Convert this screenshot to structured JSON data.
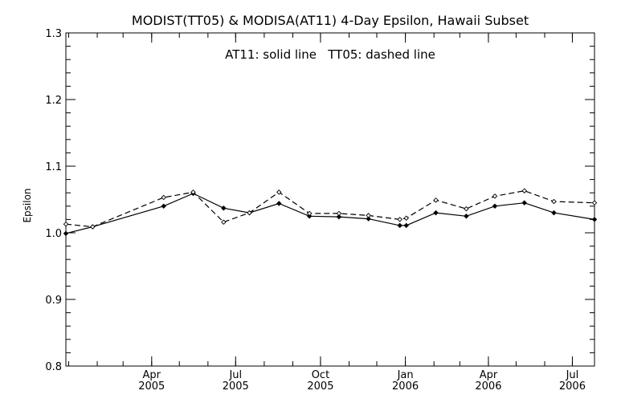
{
  "chart_data": {
    "type": "line",
    "title": "MODIST(TT05) & MODISA(AT11) 4-Day Epsilon, Hawaii Subset",
    "annotation": "AT11: solid line   TT05: dashed line",
    "ylabel": "Epsilon",
    "xlabel": "",
    "ylim": [
      0.8,
      1.3
    ],
    "xlim": [
      "2004-12-29",
      "2006-07-25"
    ],
    "yticks": [
      "0.8",
      "0.9",
      "1.0",
      "1.1",
      "1.2",
      "1.3"
    ],
    "xticks": [
      {
        "date": "2005-04-01",
        "month": "Apr",
        "year": "2005"
      },
      {
        "date": "2005-07-01",
        "month": "Jul",
        "year": "2005"
      },
      {
        "date": "2005-10-01",
        "month": "Oct",
        "year": "2005"
      },
      {
        "date": "2006-01-01",
        "month": "Jan",
        "year": "2006"
      },
      {
        "date": "2006-04-01",
        "month": "Apr",
        "year": "2006"
      },
      {
        "date": "2006-07-01",
        "month": "Jul",
        "year": "2006"
      }
    ],
    "grid": false,
    "series": [
      {
        "name": "AT11",
        "style": "solid",
        "points": [
          [
            "2004-12-29",
            0.999
          ],
          [
            "2005-01-27",
            1.009
          ],
          [
            "2005-04-14",
            1.04
          ],
          [
            "2005-05-16",
            1.059
          ],
          [
            "2005-06-18",
            1.037
          ],
          [
            "2005-07-16",
            1.03
          ],
          [
            "2005-08-17",
            1.044
          ],
          [
            "2005-09-19",
            1.025
          ],
          [
            "2005-10-21",
            1.024
          ],
          [
            "2005-11-22",
            1.021
          ],
          [
            "2005-12-26",
            1.011
          ],
          [
            "2006-01-02",
            1.011
          ],
          [
            "2006-02-03",
            1.03
          ],
          [
            "2006-03-08",
            1.025
          ],
          [
            "2006-04-08",
            1.04
          ],
          [
            "2006-05-10",
            1.045
          ],
          [
            "2006-06-11",
            1.03
          ],
          [
            "2006-07-25",
            1.02
          ]
        ]
      },
      {
        "name": "TT05",
        "style": "dashed",
        "points": [
          [
            "2004-12-29",
            1.013
          ],
          [
            "2005-01-27",
            1.009
          ],
          [
            "2005-04-14",
            1.053
          ],
          [
            "2005-05-16",
            1.061
          ],
          [
            "2005-06-18",
            1.016
          ],
          [
            "2005-07-16",
            1.03
          ],
          [
            "2005-08-17",
            1.061
          ],
          [
            "2005-09-19",
            1.029
          ],
          [
            "2005-10-21",
            1.029
          ],
          [
            "2005-11-22",
            1.026
          ],
          [
            "2005-12-26",
            1.02
          ],
          [
            "2006-01-02",
            1.022
          ],
          [
            "2006-02-03",
            1.049
          ],
          [
            "2006-03-08",
            1.036
          ],
          [
            "2006-04-08",
            1.055
          ],
          [
            "2006-05-10",
            1.063
          ],
          [
            "2006-06-11",
            1.047
          ],
          [
            "2006-07-25",
            1.045
          ]
        ]
      }
    ]
  }
}
